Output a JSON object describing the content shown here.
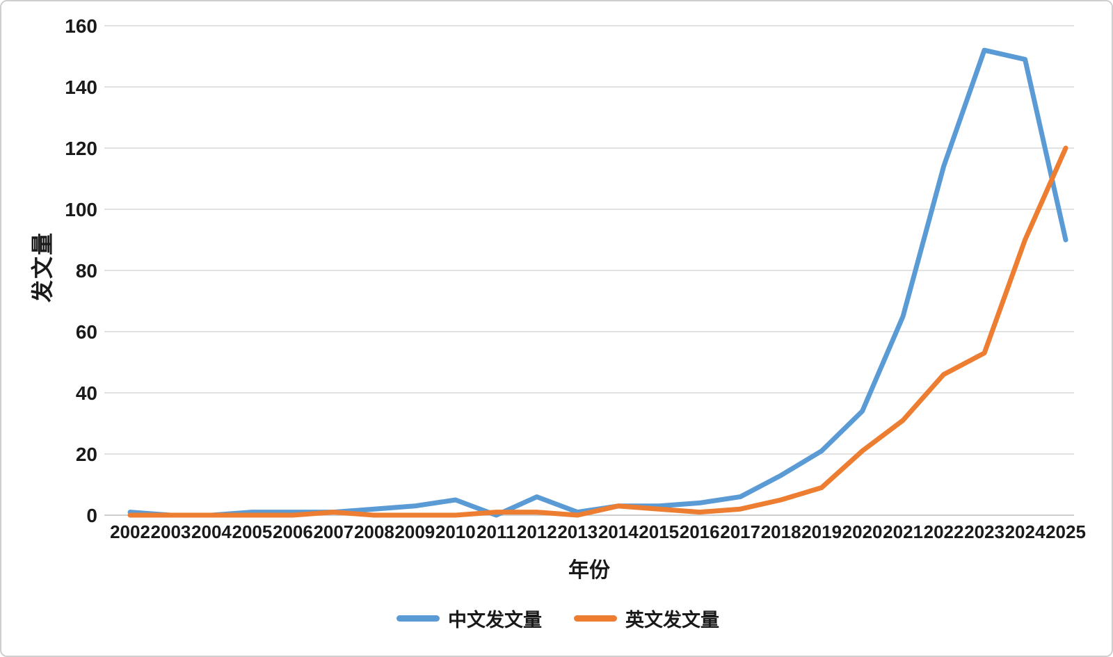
{
  "chart_data": {
    "type": "line",
    "title": "",
    "xlabel": "年份",
    "ylabel": "发文量",
    "x": [
      2002,
      2003,
      2004,
      2005,
      2006,
      2007,
      2008,
      2009,
      2010,
      2011,
      2012,
      2013,
      2014,
      2015,
      2016,
      2017,
      2018,
      2019,
      2020,
      2021,
      2022,
      2023,
      2024,
      2025
    ],
    "series": [
      {
        "name": "中文发文量",
        "color": "#5B9BD5",
        "values": [
          1,
          0,
          0,
          1,
          1,
          1,
          2,
          3,
          5,
          0,
          6,
          1,
          3,
          3,
          4,
          6,
          13,
          21,
          34,
          65,
          114,
          152,
          149,
          90
        ]
      },
      {
        "name": "英文发文量",
        "color": "#ED7D31",
        "values": [
          0,
          0,
          0,
          0,
          0,
          1,
          0,
          0,
          0,
          1,
          1,
          0,
          3,
          2,
          1,
          2,
          5,
          9,
          21,
          31,
          46,
          53,
          90,
          120
        ]
      }
    ],
    "ylim": [
      0,
      160
    ],
    "ytick_step": 20,
    "yticks": [
      0,
      20,
      40,
      60,
      80,
      100,
      120,
      140,
      160
    ],
    "grid": true,
    "legend_position": "bottom",
    "colors": {
      "gridline": "#D9D9D9",
      "axis_line": "#BFBFBF",
      "tick_label": "#1a1a1a"
    }
  }
}
